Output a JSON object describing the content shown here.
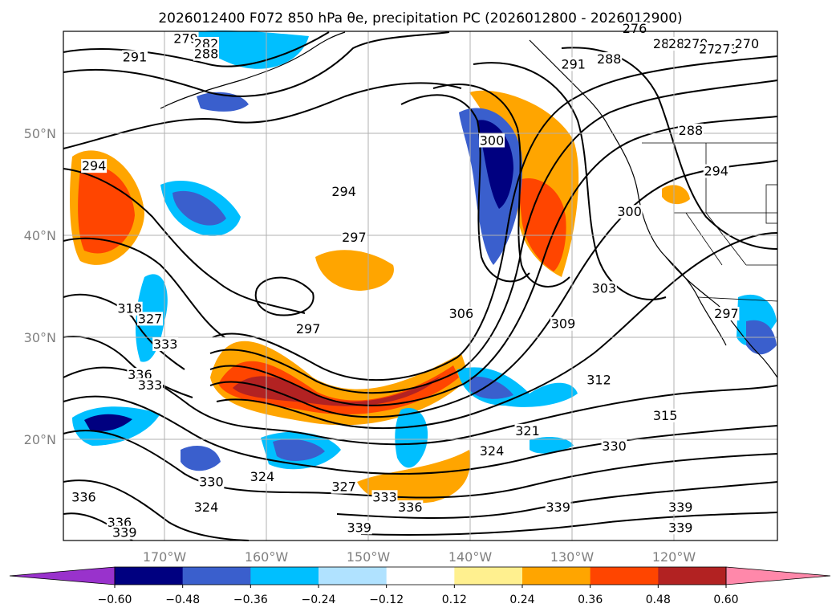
{
  "title": "2026012400 F072 850 hPa θe, precipitation PC (2026012800 - 2026012900)",
  "map": {
    "lon_ticks": [
      "170°W",
      "160°W",
      "150°W",
      "140°W",
      "130°W",
      "120°W"
    ],
    "lat_ticks": [
      "50°N",
      "40°N",
      "30°N",
      "20°N"
    ],
    "grid": true
  },
  "contour_labels": [
    {
      "text": "279",
      "lon": -168.0,
      "lat": 59.0
    },
    {
      "text": "282",
      "lon": -166.0,
      "lat": 58.5
    },
    {
      "text": "288",
      "lon": -166.0,
      "lat": 57.5
    },
    {
      "text": "291",
      "lon": -173.0,
      "lat": 57.2
    },
    {
      "text": "294",
      "lon": -177.0,
      "lat": 46.5
    },
    {
      "text": "294",
      "lon": -152.5,
      "lat": 44.0
    },
    {
      "text": "297",
      "lon": -151.5,
      "lat": 39.5
    },
    {
      "text": "297",
      "lon": -156.0,
      "lat": 30.5
    },
    {
      "text": "300",
      "lon": -138.0,
      "lat": 49.0
    },
    {
      "text": "306",
      "lon": -141.0,
      "lat": 32.0
    },
    {
      "text": "309",
      "lon": -131.0,
      "lat": 31.0
    },
    {
      "text": "312",
      "lon": -127.5,
      "lat": 25.5
    },
    {
      "text": "315",
      "lon": -121.0,
      "lat": 22.0
    },
    {
      "text": "321",
      "lon": -134.5,
      "lat": 20.5
    },
    {
      "text": "324",
      "lon": -138.0,
      "lat": 18.5
    },
    {
      "text": "330",
      "lon": -126.0,
      "lat": 19.0
    },
    {
      "text": "330",
      "lon": -165.5,
      "lat": 15.5
    },
    {
      "text": "324",
      "lon": -160.5,
      "lat": 16.0
    },
    {
      "text": "327",
      "lon": -152.5,
      "lat": 15.0
    },
    {
      "text": "333",
      "lon": -148.5,
      "lat": 14.0
    },
    {
      "text": "336",
      "lon": -146.0,
      "lat": 13.0
    },
    {
      "text": "339",
      "lon": -151.0,
      "lat": 11.0
    },
    {
      "text": "339",
      "lon": -131.5,
      "lat": 13.0
    },
    {
      "text": "339",
      "lon": -119.5,
      "lat": 13.0
    },
    {
      "text": "339",
      "lon": -119.5,
      "lat": 11.0
    },
    {
      "text": "336",
      "lon": -178.0,
      "lat": 14.0
    },
    {
      "text": "336",
      "lon": -174.5,
      "lat": 11.5
    },
    {
      "text": "339",
      "lon": -174.0,
      "lat": 10.5
    },
    {
      "text": "324",
      "lon": -166.0,
      "lat": 13.0
    },
    {
      "text": "318",
      "lon": -173.5,
      "lat": 32.5
    },
    {
      "text": "327",
      "lon": -171.5,
      "lat": 31.5
    },
    {
      "text": "333",
      "lon": -170.0,
      "lat": 29.0
    },
    {
      "text": "336",
      "lon": -172.5,
      "lat": 26.0
    },
    {
      "text": "333",
      "lon": -171.5,
      "lat": 25.0
    },
    {
      "text": "291",
      "lon": -130.0,
      "lat": 56.5
    },
    {
      "text": "288",
      "lon": -126.5,
      "lat": 57.0
    },
    {
      "text": "276",
      "lon": -124.0,
      "lat": 60.0
    },
    {
      "text": "285",
      "lon": -121.0,
      "lat": 58.5
    },
    {
      "text": "282",
      "lon": -119.5,
      "lat": 58.5
    },
    {
      "text": "279",
      "lon": -118.0,
      "lat": 58.5
    },
    {
      "text": "276",
      "lon": -116.5,
      "lat": 58.0
    },
    {
      "text": "273",
      "lon": -115.0,
      "lat": 58.0
    },
    {
      "text": "270",
      "lon": -113.0,
      "lat": 58.5
    },
    {
      "text": "288",
      "lon": -118.5,
      "lat": 50.0
    },
    {
      "text": "294",
      "lon": -116.0,
      "lat": 46.0
    },
    {
      "text": "300",
      "lon": -124.5,
      "lat": 42.0
    },
    {
      "text": "303",
      "lon": -127.0,
      "lat": 34.5
    },
    {
      "text": "297",
      "lon": -115.0,
      "lat": 32.0
    }
  ],
  "colorbar": {
    "ticks": [
      "−0.60",
      "−0.48",
      "−0.36",
      "−0.24",
      "−0.12",
      "0.12",
      "0.24",
      "0.36",
      "0.48",
      "0.60"
    ],
    "colors": [
      "#9932cc",
      "#000080",
      "#3a5fcd",
      "#00bfff",
      "#b0e2ff",
      "#ffffff",
      "#fff08f",
      "#ffa500",
      "#ff4500",
      "#b22222",
      "#ff88aa"
    ]
  }
}
